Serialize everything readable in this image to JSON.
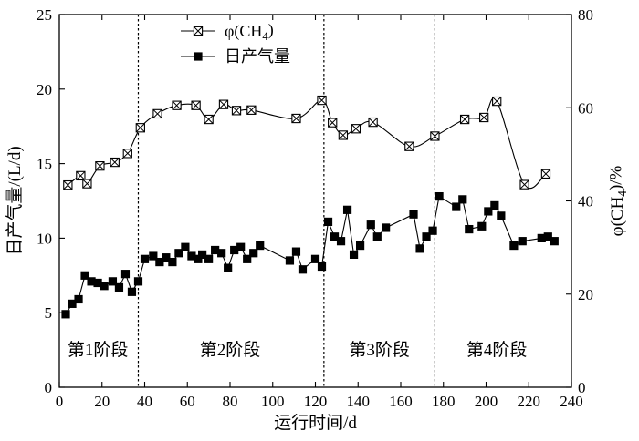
{
  "chart_data": {
    "type": "line",
    "x": {
      "label": "运行时间/d",
      "range": [
        0,
        240
      ],
      "ticks": [
        0,
        20,
        40,
        60,
        80,
        100,
        120,
        140,
        160,
        180,
        200,
        220,
        240
      ]
    },
    "y_left": {
      "label": "日产气量/(L/d)",
      "range": [
        0,
        25
      ],
      "ticks": [
        0,
        5,
        10,
        15,
        20,
        25
      ]
    },
    "y_right": {
      "label_prefix": "φ(CH",
      "label_sub": "4",
      "label_suffix": ")/%",
      "range": [
        0,
        80
      ],
      "ticks": [
        0,
        20,
        40,
        60,
        80
      ]
    },
    "legend": {
      "placement": "top-center",
      "entries": [
        {
          "prefix": "φ(CH",
          "sub": "4",
          "suffix": ")",
          "marker": "square-x-open"
        },
        {
          "prefix": "日产气量",
          "sub": "",
          "suffix": "",
          "marker": "square-filled"
        }
      ]
    },
    "stage_dividers": [
      37,
      124,
      176
    ],
    "stages": [
      {
        "label": "第1阶段",
        "x_center": 18
      },
      {
        "label": "第2阶段",
        "x_center": 80
      },
      {
        "label": "第3阶段",
        "x_center": 150
      },
      {
        "label": "第4阶段",
        "x_center": 205
      }
    ],
    "series": [
      {
        "axis": "right",
        "marker": "square-x-open",
        "line_style": "smooth",
        "points": [
          [
            4,
            43.4
          ],
          [
            10,
            45.4
          ],
          [
            13,
            43.7
          ],
          [
            19,
            47.5
          ],
          [
            26,
            48.3
          ],
          [
            32,
            50.2
          ],
          [
            38,
            55.7
          ],
          [
            46,
            58.7
          ],
          [
            55,
            60.5
          ],
          [
            64,
            60.5
          ],
          [
            70,
            57.5
          ],
          [
            77,
            60.7
          ],
          [
            83,
            59.4
          ],
          [
            90,
            59.5
          ],
          [
            111,
            57.7
          ],
          [
            123,
            61.6
          ],
          [
            128,
            56.8
          ],
          [
            133,
            54.1
          ],
          [
            139,
            55.5
          ],
          [
            147,
            56.9
          ],
          [
            164,
            51.7
          ],
          [
            176,
            53.9
          ],
          [
            190,
            57.5
          ],
          [
            199,
            57.9
          ],
          [
            205,
            61.4
          ],
          [
            218,
            43.5
          ],
          [
            228,
            45.8
          ]
        ]
      },
      {
        "axis": "left",
        "marker": "square-filled",
        "line_style": "straight",
        "points": [
          [
            3,
            4.9
          ],
          [
            6,
            5.6
          ],
          [
            9,
            5.9
          ],
          [
            12,
            7.5
          ],
          [
            15,
            7.1
          ],
          [
            18,
            7.0
          ],
          [
            21,
            6.8
          ],
          [
            25,
            7.1
          ],
          [
            28,
            6.7
          ],
          [
            31,
            7.6
          ],
          [
            34,
            6.4
          ],
          [
            37,
            7.1
          ],
          [
            40,
            8.6
          ],
          [
            44,
            8.8
          ],
          [
            47,
            8.4
          ],
          [
            50,
            8.7
          ],
          [
            53,
            8.4
          ],
          [
            56,
            9.0
          ],
          [
            59,
            9.4
          ],
          [
            62,
            8.8
          ],
          [
            65,
            8.6
          ],
          [
            67,
            8.9
          ],
          [
            70,
            8.6
          ],
          [
            73,
            9.2
          ],
          [
            76,
            9.0
          ],
          [
            79,
            8.0
          ],
          [
            82,
            9.2
          ],
          [
            85,
            9.4
          ],
          [
            88,
            8.6
          ],
          [
            91,
            9.0
          ],
          [
            94,
            9.5
          ],
          [
            108,
            8.5
          ],
          [
            111,
            9.1
          ],
          [
            114,
            7.9
          ],
          [
            120,
            8.6
          ],
          [
            123,
            8.1
          ],
          [
            126,
            11.1
          ],
          [
            129,
            10.1
          ],
          [
            132,
            9.8
          ],
          [
            135,
            11.9
          ],
          [
            138,
            8.9
          ],
          [
            141,
            9.5
          ],
          [
            146,
            10.9
          ],
          [
            149,
            10.1
          ],
          [
            153,
            10.7
          ],
          [
            166,
            11.6
          ],
          [
            169,
            9.3
          ],
          [
            172,
            10.1
          ],
          [
            175,
            10.5
          ],
          [
            178,
            12.8
          ],
          [
            186,
            12.1
          ],
          [
            189,
            12.6
          ],
          [
            192,
            10.6
          ],
          [
            198,
            10.8
          ],
          [
            201,
            11.8
          ],
          [
            204,
            12.2
          ],
          [
            207,
            11.5
          ],
          [
            213,
            9.5
          ],
          [
            217,
            9.8
          ],
          [
            226,
            10.0
          ],
          [
            229,
            10.1
          ],
          [
            232,
            9.8
          ]
        ]
      }
    ]
  }
}
